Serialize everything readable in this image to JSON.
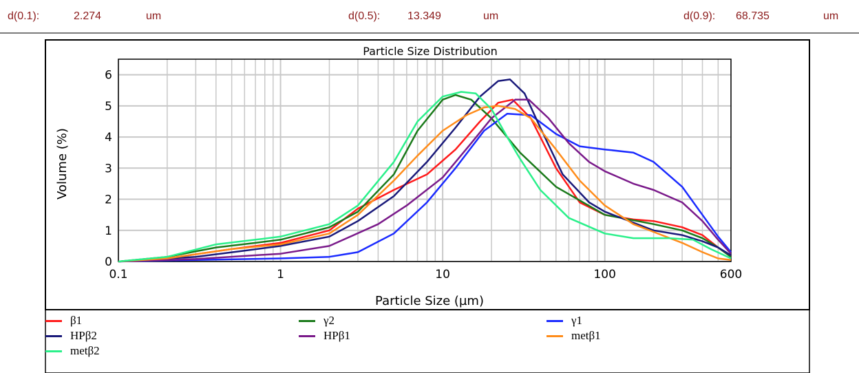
{
  "stats": [
    {
      "label": "d(0.1):",
      "value": "2.274",
      "unit": "um"
    },
    {
      "label": "d(0.5):",
      "value": "13.349",
      "unit": "um"
    },
    {
      "label": "d(0.9):",
      "value": "68.735",
      "unit": "um"
    }
  ],
  "chart_data": {
    "type": "line",
    "title": "Particle Size Distribution",
    "xlabel": "Particle Size (µm)",
    "ylabel": "Volume (%)",
    "x_scale": "log",
    "xlim": [
      0.1,
      600
    ],
    "ylim": [
      0,
      6.5
    ],
    "x_ticks": [
      "0.1",
      "1",
      "10",
      "100",
      "600"
    ],
    "y_ticks": [
      "0",
      "1",
      "2",
      "3",
      "4",
      "5",
      "6"
    ],
    "grid": true,
    "legend_position": "bottom",
    "series": [
      {
        "name": "β1",
        "color": "#ff1a1a",
        "points": [
          [
            0.1,
            0
          ],
          [
            0.2,
            0.1
          ],
          [
            0.5,
            0.4
          ],
          [
            1,
            0.6
          ],
          [
            2,
            1.0
          ],
          [
            3,
            1.7
          ],
          [
            5,
            2.3
          ],
          [
            8,
            2.8
          ],
          [
            12,
            3.6
          ],
          [
            17,
            4.5
          ],
          [
            22,
            5.1
          ],
          [
            27,
            5.2
          ],
          [
            35,
            4.6
          ],
          [
            50,
            3.0
          ],
          [
            70,
            1.9
          ],
          [
            100,
            1.5
          ],
          [
            150,
            1.35
          ],
          [
            200,
            1.3
          ],
          [
            300,
            1.1
          ],
          [
            400,
            0.85
          ],
          [
            500,
            0.45
          ],
          [
            600,
            0.15
          ]
        ]
      },
      {
        "name": "γ2",
        "color": "#1a7a1a",
        "points": [
          [
            0.1,
            0
          ],
          [
            0.2,
            0.15
          ],
          [
            0.4,
            0.45
          ],
          [
            0.7,
            0.6
          ],
          [
            1,
            0.7
          ],
          [
            2,
            1.1
          ],
          [
            3,
            1.6
          ],
          [
            5,
            2.8
          ],
          [
            7,
            4.2
          ],
          [
            10,
            5.2
          ],
          [
            12,
            5.35
          ],
          [
            15,
            5.2
          ],
          [
            20,
            4.6
          ],
          [
            30,
            3.5
          ],
          [
            50,
            2.4
          ],
          [
            100,
            1.5
          ],
          [
            200,
            1.2
          ],
          [
            300,
            1.0
          ],
          [
            400,
            0.75
          ],
          [
            500,
            0.45
          ],
          [
            600,
            0.15
          ]
        ]
      },
      {
        "name": "γ1",
        "color": "#1a2aff",
        "points": [
          [
            0.1,
            0
          ],
          [
            0.3,
            0.05
          ],
          [
            1,
            0.1
          ],
          [
            2,
            0.15
          ],
          [
            3,
            0.3
          ],
          [
            5,
            0.9
          ],
          [
            8,
            1.9
          ],
          [
            12,
            3.0
          ],
          [
            18,
            4.2
          ],
          [
            25,
            4.75
          ],
          [
            35,
            4.7
          ],
          [
            50,
            4.1
          ],
          [
            70,
            3.7
          ],
          [
            100,
            3.6
          ],
          [
            150,
            3.5
          ],
          [
            200,
            3.2
          ],
          [
            300,
            2.4
          ],
          [
            400,
            1.5
          ],
          [
            500,
            0.8
          ],
          [
            600,
            0.3
          ]
        ]
      },
      {
        "name": "HPβ2",
        "color": "#1a1a7a",
        "points": [
          [
            0.1,
            0
          ],
          [
            0.3,
            0.15
          ],
          [
            0.6,
            0.35
          ],
          [
            1,
            0.5
          ],
          [
            2,
            0.8
          ],
          [
            3,
            1.3
          ],
          [
            5,
            2.1
          ],
          [
            8,
            3.2
          ],
          [
            12,
            4.3
          ],
          [
            17,
            5.3
          ],
          [
            22,
            5.8
          ],
          [
            26,
            5.85
          ],
          [
            32,
            5.4
          ],
          [
            40,
            4.3
          ],
          [
            55,
            2.8
          ],
          [
            80,
            1.9
          ],
          [
            100,
            1.6
          ],
          [
            150,
            1.25
          ],
          [
            200,
            1.0
          ],
          [
            300,
            0.85
          ],
          [
            400,
            0.65
          ],
          [
            500,
            0.45
          ],
          [
            600,
            0.2
          ]
        ]
      },
      {
        "name": "HPβ1",
        "color": "#7a1a8a",
        "points": [
          [
            0.1,
            0
          ],
          [
            0.3,
            0.08
          ],
          [
            1,
            0.25
          ],
          [
            2,
            0.5
          ],
          [
            4,
            1.2
          ],
          [
            6,
            1.8
          ],
          [
            10,
            2.7
          ],
          [
            15,
            3.8
          ],
          [
            20,
            4.6
          ],
          [
            28,
            5.2
          ],
          [
            34,
            5.2
          ],
          [
            45,
            4.6
          ],
          [
            60,
            3.8
          ],
          [
            80,
            3.2
          ],
          [
            100,
            2.9
          ],
          [
            150,
            2.5
          ],
          [
            200,
            2.3
          ],
          [
            300,
            1.9
          ],
          [
            400,
            1.3
          ],
          [
            500,
            0.7
          ],
          [
            600,
            0.25
          ]
        ]
      },
      {
        "name": "metβ1",
        "color": "#ff8c1a",
        "points": [
          [
            0.1,
            0
          ],
          [
            0.2,
            0.1
          ],
          [
            0.5,
            0.4
          ],
          [
            1,
            0.55
          ],
          [
            2,
            0.9
          ],
          [
            3,
            1.5
          ],
          [
            5,
            2.6
          ],
          [
            7,
            3.4
          ],
          [
            10,
            4.2
          ],
          [
            14,
            4.7
          ],
          [
            18,
            4.95
          ],
          [
            22,
            5.0
          ],
          [
            28,
            4.9
          ],
          [
            35,
            4.6
          ],
          [
            50,
            3.6
          ],
          [
            70,
            2.6
          ],
          [
            100,
            1.8
          ],
          [
            150,
            1.2
          ],
          [
            200,
            0.95
          ],
          [
            300,
            0.6
          ],
          [
            400,
            0.3
          ],
          [
            500,
            0.1
          ],
          [
            600,
            0.05
          ]
        ]
      },
      {
        "name": "metβ2",
        "color": "#2af08a",
        "points": [
          [
            0.1,
            0
          ],
          [
            0.2,
            0.15
          ],
          [
            0.4,
            0.55
          ],
          [
            0.7,
            0.7
          ],
          [
            1,
            0.8
          ],
          [
            2,
            1.2
          ],
          [
            3,
            1.8
          ],
          [
            5,
            3.2
          ],
          [
            7,
            4.5
          ],
          [
            10,
            5.3
          ],
          [
            13,
            5.45
          ],
          [
            16,
            5.4
          ],
          [
            20,
            4.9
          ],
          [
            25,
            4.0
          ],
          [
            30,
            3.3
          ],
          [
            40,
            2.3
          ],
          [
            60,
            1.4
          ],
          [
            100,
            0.9
          ],
          [
            150,
            0.75
          ],
          [
            250,
            0.75
          ],
          [
            350,
            0.7
          ],
          [
            450,
            0.4
          ],
          [
            600,
            0.1
          ]
        ]
      }
    ]
  }
}
